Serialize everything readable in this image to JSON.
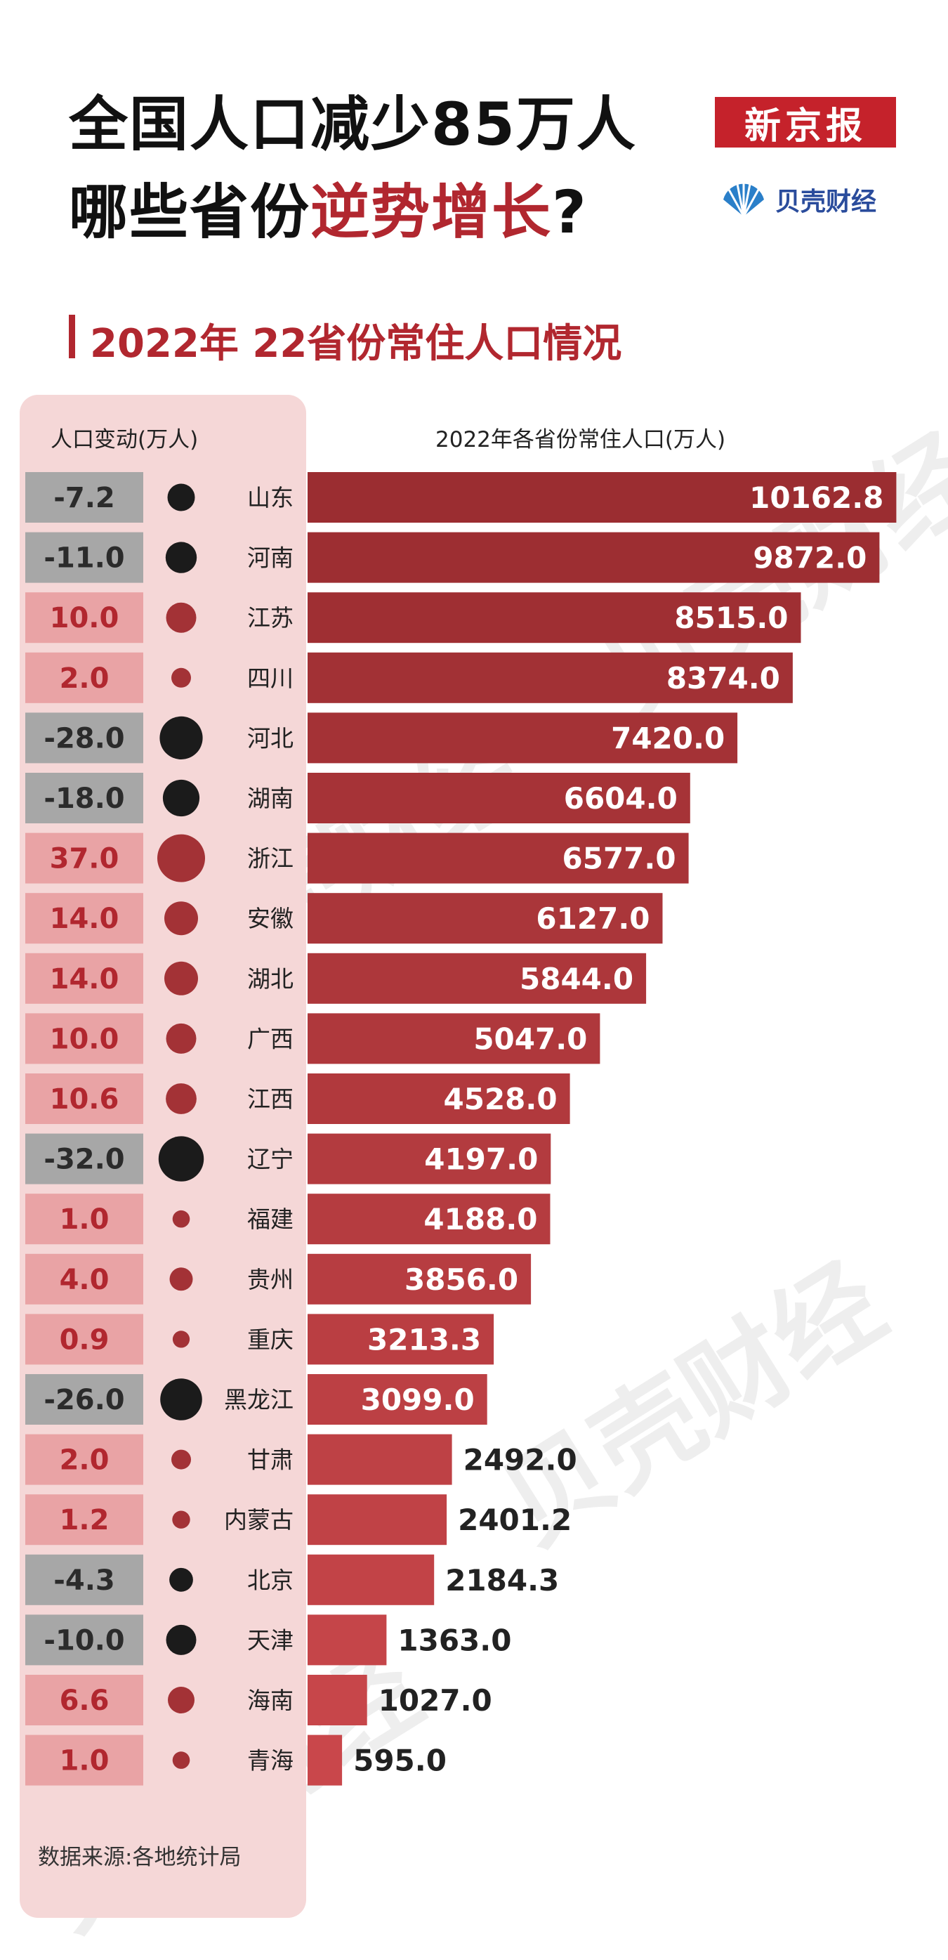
{
  "headline": {
    "line1": "全国人口减少85万人",
    "line2_prefix": "哪些省份",
    "line2_highlight": "逆势增长",
    "line2_suffix": "?"
  },
  "brand": {
    "newspaper": "新京报",
    "sub_brand": "贝壳财经"
  },
  "section_title": "2022年 22省份常住人口情况",
  "watermark_text": "贝壳财经",
  "source_note": "数据来源:各地统计局",
  "colors": {
    "accent_red": "#b1272f",
    "bar_dark": "#9b2d31",
    "bar_light": "#c9474b",
    "increase_box": "#e9a3a5",
    "decrease_box": "#a7a7a7",
    "increase_dot": "#a33236",
    "decrease_dot": "#1b1b1b",
    "panel_bg": "#f5d7d7"
  },
  "chart_data": {
    "type": "bar",
    "orientation": "horizontal",
    "title": "2022年 22省份常住人口情况",
    "change_column_label": "人口变动(万人)",
    "population_column_label": "2022年各省份常住人口(万人)",
    "categories": [
      "山东",
      "河南",
      "江苏",
      "四川",
      "河北",
      "湖南",
      "浙江",
      "安徽",
      "湖北",
      "广西",
      "江西",
      "辽宁",
      "福建",
      "贵州",
      "重庆",
      "黑龙江",
      "甘肃",
      "内蒙古",
      "北京",
      "天津",
      "海南",
      "青海"
    ],
    "series": [
      {
        "name": "2022年各省份常住人口(万人)",
        "values": [
          10162.8,
          9872.0,
          8515.0,
          8374.0,
          7420.0,
          6604.0,
          6577.0,
          6127.0,
          5844.0,
          5047.0,
          4528.0,
          4197.0,
          4188.0,
          3856.0,
          3213.3,
          3099.0,
          2492.0,
          2401.2,
          2184.3,
          1363.0,
          1027.0,
          595.0
        ]
      },
      {
        "name": "人口变动(万人)",
        "values": [
          -7.2,
          -11.0,
          10.0,
          2.0,
          -28.0,
          -18.0,
          37.0,
          14.0,
          14.0,
          10.0,
          10.6,
          -32.0,
          1.0,
          4.0,
          0.9,
          -26.0,
          2.0,
          1.2,
          -4.3,
          -10.0,
          6.6,
          1.0
        ]
      }
    ],
    "population_labels": [
      "10162.8",
      "9872.0",
      "8515.0",
      "8374.0",
      "7420.0",
      "6604.0",
      "6577.0",
      "6127.0",
      "5844.0",
      "5047.0",
      "4528.0",
      "4197.0",
      "4188.0",
      "3856.0",
      "3213.3",
      "3099.0",
      "2492.0",
      "2401.2",
      "2184.3",
      "1363.0",
      "1027.0",
      "595.0"
    ],
    "change_labels": [
      "-7.2",
      "-11.0",
      "10.0",
      "2.0",
      "-28.0",
      "-18.0",
      "37.0",
      "14.0",
      "14.0",
      "10.0",
      "10.6",
      "-32.0",
      "1.0",
      "4.0",
      "0.9",
      "-26.0",
      "2.0",
      "1.2",
      "-4.3",
      "-10.0",
      "6.6",
      "1.0"
    ],
    "xlim": [
      0,
      10500
    ],
    "grid": false,
    "legend": "none"
  }
}
